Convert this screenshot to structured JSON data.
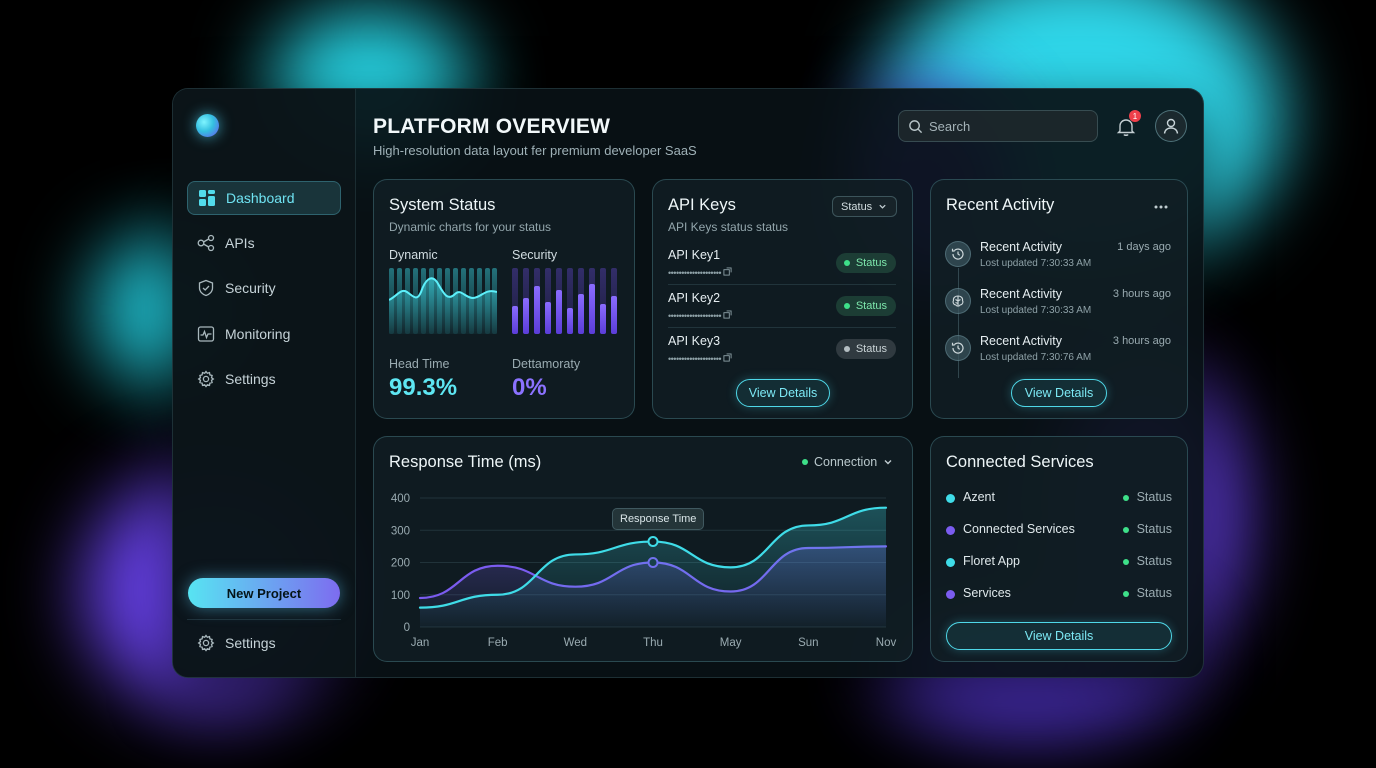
{
  "header": {
    "title": "PLATFORM OVERVIEW",
    "subtitle": "High-resolution data layout fer premium developer SaaS",
    "search_placeholder": "Search",
    "notification_count": "1"
  },
  "sidebar": {
    "items": [
      {
        "label": "Dashboard",
        "icon": "dashboard-icon"
      },
      {
        "label": "APIs",
        "icon": "share-nodes-icon"
      },
      {
        "label": "Security",
        "icon": "shield-icon"
      },
      {
        "label": "Monitoring",
        "icon": "monitor-pulse-icon"
      },
      {
        "label": "Settings",
        "icon": "gear-icon"
      }
    ],
    "new_project_label": "New Project",
    "bottom_settings_label": "Settings"
  },
  "system_status": {
    "title": "System Status",
    "subtitle": "Dynamic charts for your status",
    "left_chart_label": "Dynamic",
    "right_chart_label": "Security",
    "metric1_label": "Head Time",
    "metric1_value": "99.3%",
    "metric2_label": "Dettamoraty",
    "metric2_value": "0%"
  },
  "api_keys": {
    "title": "API Keys",
    "subtitle": "API Keys status status",
    "filter_label": "Status",
    "keys": [
      {
        "name": "API Key1",
        "masked": "••••••••••••••••••••",
        "status": "Status",
        "state": "active"
      },
      {
        "name": "API Key2",
        "masked": "••••••••••••••••••••",
        "status": "Status",
        "state": "active"
      },
      {
        "name": "API Key3",
        "masked": "••••••••••••••••••••",
        "status": "Status",
        "state": "inactive"
      }
    ],
    "button_label": "View Details"
  },
  "recent_activity": {
    "title": "Recent Activity",
    "items": [
      {
        "title": "Recent Activity",
        "time": "1 days ago",
        "meta": "Lost updated 7:30:33 AM",
        "icon": "history-icon"
      },
      {
        "title": "Recent Activity",
        "time": "3 hours ago",
        "meta": "Lost updated 7:30:33 AM",
        "icon": "brain-icon"
      },
      {
        "title": "Recent Activity",
        "time": "3 hours ago",
        "meta": "Lost updated 7:30:76 AM",
        "icon": "history-icon"
      }
    ],
    "button_label": "View Details"
  },
  "response_time": {
    "title": "Response Time (ms)",
    "filter_label": "Connection",
    "tooltip": "Response Time"
  },
  "connected_services": {
    "title": "Connected Services",
    "items": [
      {
        "name": "Azent",
        "status": "Status",
        "color": "#3fdce8"
      },
      {
        "name": "Connected Services",
        "status": "Status",
        "color": "#7b5cf0"
      },
      {
        "name": "Floret App",
        "status": "Status",
        "color": "#3fdce8"
      },
      {
        "name": "Services",
        "status": "Status",
        "color": "#7b5cf0"
      }
    ],
    "button_label": "View Details"
  },
  "colors": {
    "cyan": "#3fdce8",
    "purple": "#7b5cf0",
    "green": "#3ee089"
  },
  "chart_data": {
    "type": "line",
    "title": "Response Time (ms)",
    "categories": [
      "Jan",
      "Feb",
      "Wed",
      "Thu",
      "May",
      "Sun",
      "Nov"
    ],
    "yticks": [
      0,
      100,
      200,
      300,
      400
    ],
    "ylim": [
      0,
      400
    ],
    "grid": true,
    "series": [
      {
        "values": [
          60,
          100,
          225,
          265,
          185,
          315,
          370
        ],
        "color": "#3fdce8"
      },
      {
        "values": [
          90,
          190,
          125,
          200,
          110,
          245,
          250
        ],
        "color": "#7b5cf0"
      }
    ]
  }
}
